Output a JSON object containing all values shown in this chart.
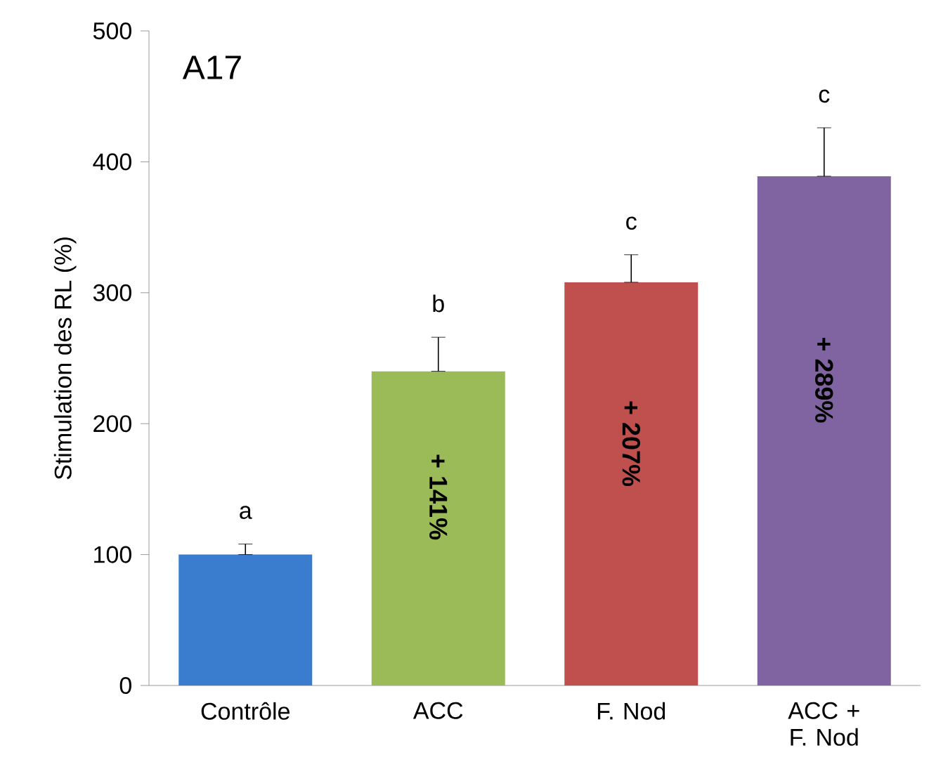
{
  "chart_data": {
    "type": "bar",
    "title": "A17",
    "ylabel": "Stimulation des RL (%)",
    "categories": [
      "Contrôle",
      "ACC",
      "F. Nod",
      "ACC + F. Nod"
    ],
    "values": [
      100,
      240,
      308,
      389
    ],
    "colors": [
      "#3a7dcf",
      "#9bbb59",
      "#c0504d",
      "#8064a2"
    ],
    "errors": [
      [
        100,
        108
      ],
      [
        240,
        266
      ],
      [
        308,
        329
      ],
      [
        389,
        426
      ]
    ],
    "ylim": [
      0,
      500
    ],
    "yticks": [
      0,
      100,
      200,
      300,
      400,
      500
    ],
    "grid": false,
    "annotations": [
      "a",
      "b",
      "c",
      "c",
      "+ 141%",
      "+ 207%",
      "+ 289%"
    ]
  }
}
